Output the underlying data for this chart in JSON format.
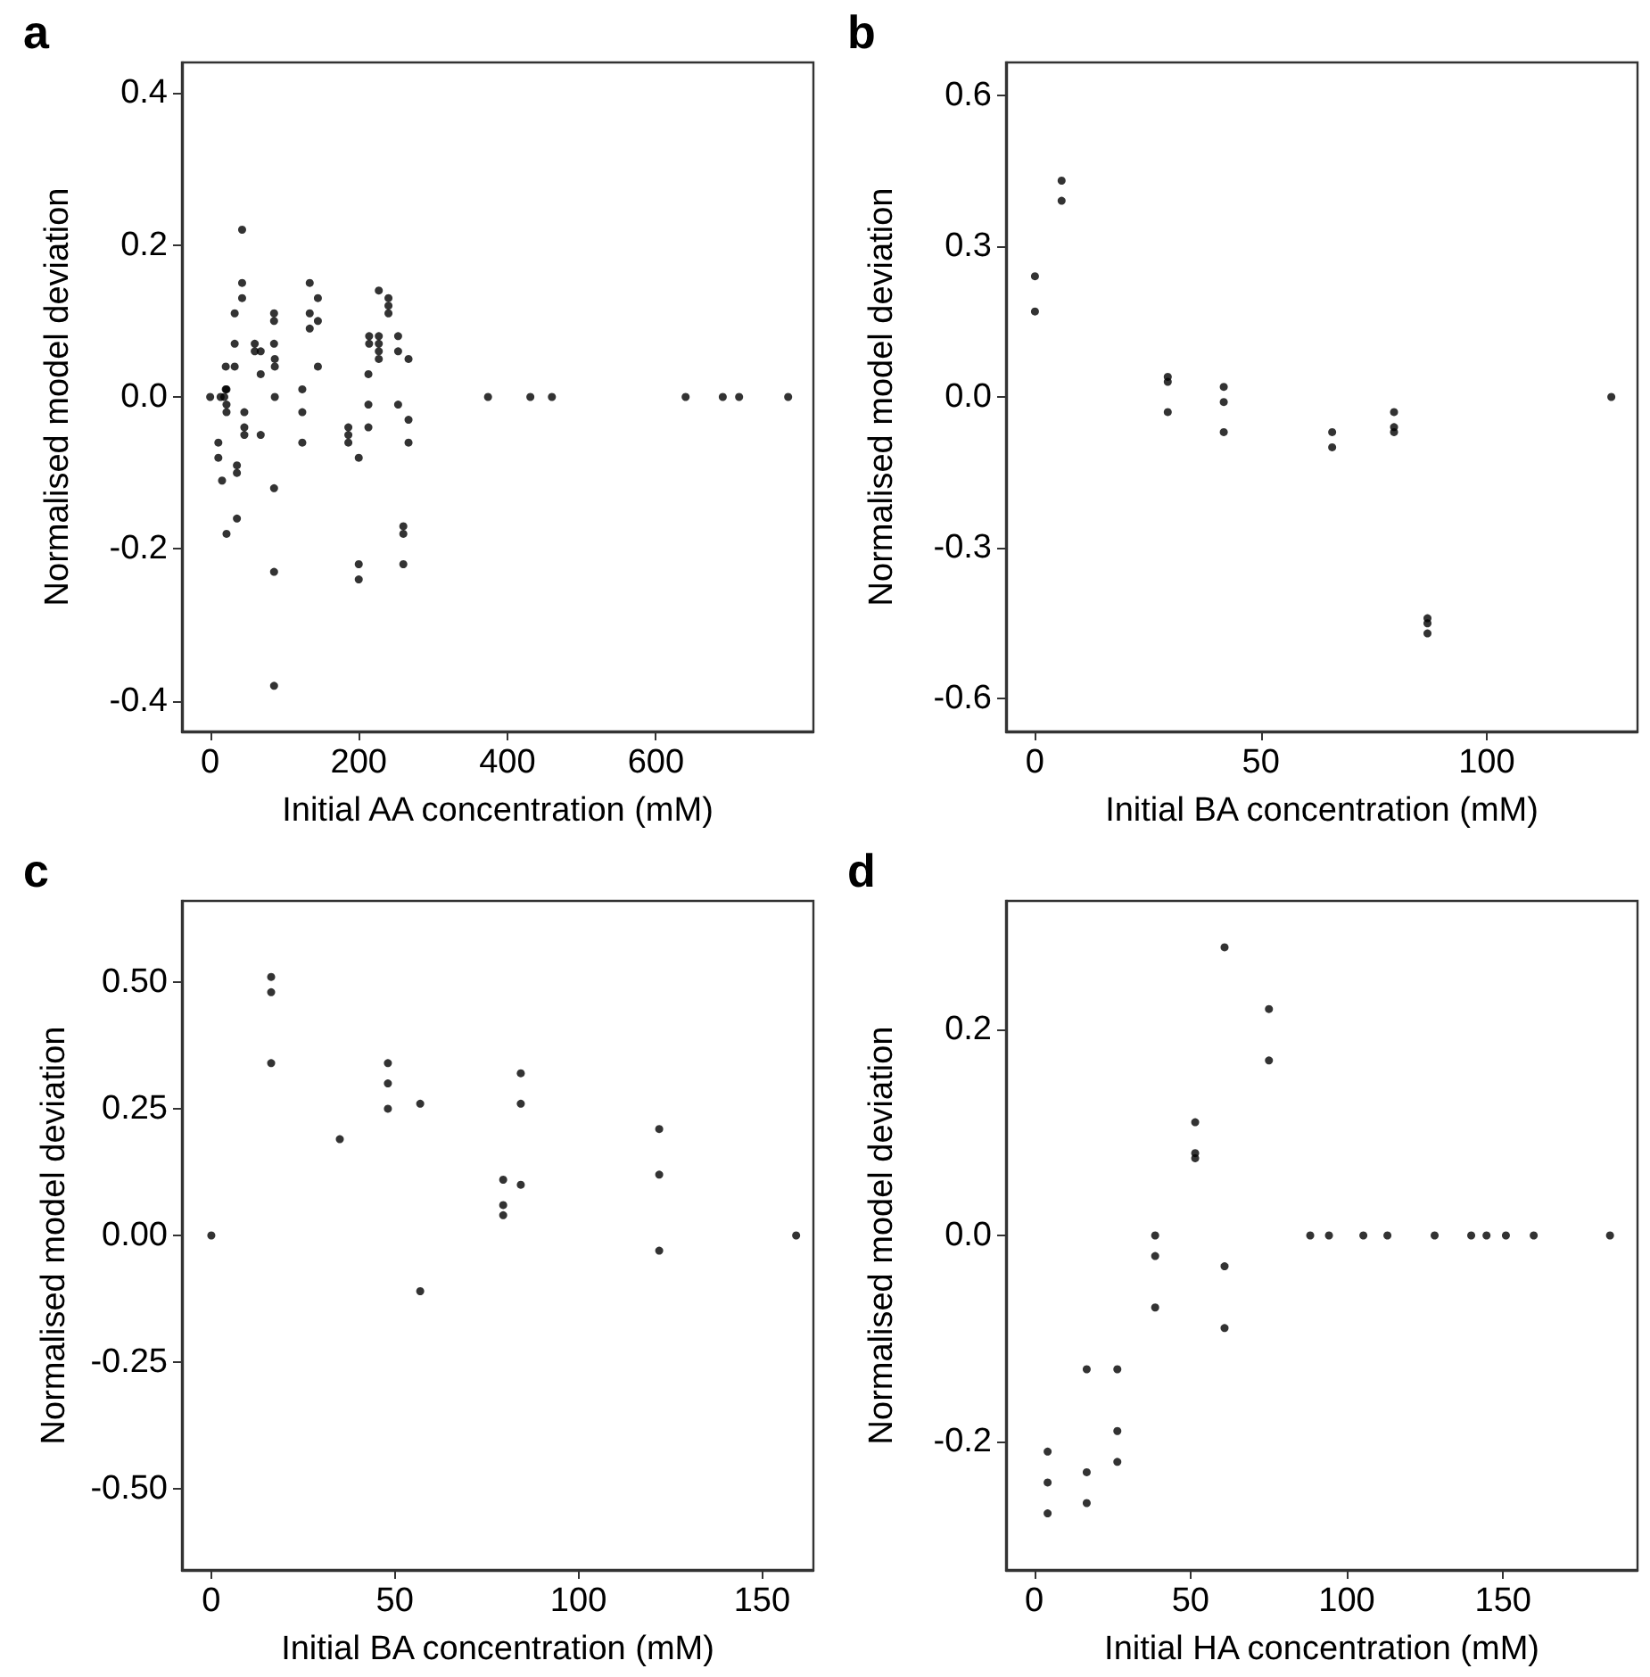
{
  "chart_data": [
    {
      "type": "scatter",
      "title": "a",
      "xlabel": "Initial AA concentration (mM)",
      "ylabel": "Normalised model deviation",
      "marker": "circle",
      "grid": false,
      "xlim": [
        -38,
        812
      ],
      "xticks": [
        0,
        200,
        400,
        600
      ],
      "ylim": [
        -0.44,
        0.44
      ],
      "yticks": [
        -0.4,
        -0.2,
        {
          "value": 0,
          "label": "0.0"
        },
        0.2,
        0.4
      ],
      "series": [
        {
          "color": "#000000",
          "x": [
            0,
            11,
            11,
            16,
            14,
            19,
            21,
            22,
            22,
            22,
            21,
            22,
            33,
            33,
            33,
            36,
            36,
            36,
            43,
            43,
            43,
            46,
            46,
            46,
            60,
            60,
            68,
            68,
            68,
            86,
            86,
            86,
            87,
            87,
            87,
            86,
            86,
            86,
            124,
            124,
            124,
            134,
            134,
            134,
            145,
            145,
            145,
            186,
            186,
            186,
            200,
            200,
            200,
            213,
            213,
            213,
            214,
            214,
            227,
            227,
            227,
            227,
            227,
            240,
            240,
            240,
            253,
            253,
            253,
            260,
            260,
            260,
            267,
            267,
            267,
            374,
            431,
            460,
            640,
            690,
            712,
            778
          ],
          "values": [
            0,
            -0.06,
            -0.08,
            -0.11,
            0,
            0,
            0.01,
            0.01,
            -0.01,
            -0.02,
            0.04,
            -0.18,
            0.07,
            0.04,
            0.11,
            -0.09,
            -0.1,
            -0.16,
            0.22,
            0.15,
            0.13,
            -0.02,
            -0.04,
            -0.05,
            0.07,
            0.06,
            0.06,
            0.03,
            -0.05,
            0.11,
            0.1,
            0.07,
            0.05,
            0.04,
            0,
            -0.12,
            -0.23,
            -0.38,
            0.01,
            -0.02,
            -0.06,
            0.15,
            0.11,
            0.09,
            0.13,
            0.1,
            0.04,
            -0.04,
            -0.05,
            -0.06,
            -0.08,
            -0.22,
            -0.24,
            0.03,
            -0.01,
            -0.04,
            0.08,
            0.07,
            0.14,
            0.08,
            0.07,
            0.06,
            0.05,
            0.13,
            0.12,
            0.11,
            0.08,
            0.06,
            -0.01,
            -0.17,
            -0.18,
            -0.22,
            0.05,
            -0.03,
            -0.06,
            0,
            0,
            0,
            0,
            0,
            0,
            0
          ]
        }
      ]
    },
    {
      "type": "scatter",
      "title": "b",
      "xlabel": "Initial BA concentration (mM)",
      "ylabel": "Normalised model deviation",
      "marker": "circle",
      "grid": false,
      "xlim": [
        -6.4,
        133.4
      ],
      "xticks": [
        0,
        50,
        100
      ],
      "ylim": [
        -0.665,
        0.665
      ],
      "yticks": [
        -0.6,
        -0.3,
        {
          "value": 0,
          "label": "0.0"
        },
        0.3,
        0.6
      ],
      "series": [
        {
          "color": "#000000",
          "x": [
            0,
            0,
            5.9,
            5.9,
            29.4,
            29.4,
            29.4,
            41.8,
            41.8,
            41.8,
            65.8,
            65.8,
            79.5,
            79.5,
            79.5,
            86.9,
            86.9,
            86.9,
            127.6
          ],
          "values": [
            0.24,
            0.17,
            0.43,
            0.39,
            0.04,
            0.03,
            -0.03,
            0.02,
            -0.01,
            -0.07,
            -0.07,
            -0.1,
            -0.03,
            -0.06,
            -0.07,
            -0.44,
            -0.45,
            -0.47,
            0
          ]
        }
      ]
    },
    {
      "type": "scatter",
      "title": "c",
      "xlabel": "Initial BA concentration (mM)",
      "ylabel": "Normalised model deviation",
      "marker": "circle",
      "grid": false,
      "xlim": [
        -8,
        164
      ],
      "xticks": [
        0,
        50,
        100,
        150
      ],
      "ylim": [
        -0.66,
        0.66
      ],
      "yticks": [
        {
          "value": -0.5,
          "label": "-0.50"
        },
        -0.25,
        {
          "value": 0,
          "label": "0.00"
        },
        0.25,
        {
          "value": 0.5,
          "label": "0.50"
        }
      ],
      "series": [
        {
          "color": "#000000",
          "x": [
            0,
            16.3,
            16.3,
            16.3,
            35,
            48.1,
            48.1,
            48.1,
            56.9,
            56.9,
            79.5,
            79.5,
            79.5,
            84.3,
            84.3,
            84.3,
            122,
            122,
            122,
            159.3
          ],
          "values": [
            0,
            0.51,
            0.48,
            0.34,
            0.19,
            0.34,
            0.3,
            0.25,
            0.26,
            -0.11,
            0.11,
            0.06,
            0.04,
            0.32,
            0.26,
            0.1,
            0.21,
            0.12,
            -0.03,
            0
          ]
        }
      ]
    },
    {
      "type": "scatter",
      "title": "d",
      "xlabel": "Initial HA concentration (mM)",
      "ylabel": "Normalised model deviation",
      "marker": "circle",
      "grid": false,
      "xlim": [
        -9,
        193
      ],
      "xticks": [
        0,
        50,
        100,
        150
      ],
      "ylim": [
        -0.325,
        0.325
      ],
      "yticks": [
        -0.2,
        {
          "value": 0,
          "label": "0.0"
        },
        0.2
      ],
      "series": [
        {
          "color": "#000000",
          "x": [
            4.3,
            4.3,
            4.3,
            16.8,
            16.8,
            16.8,
            26.6,
            26.6,
            26.6,
            38.7,
            38.7,
            38.7,
            51.5,
            51.5,
            51.5,
            60.9,
            60.9,
            60.9,
            75.1,
            75.1,
            88.3,
            94.3,
            105.3,
            113,
            128.1,
            139.8,
            144.7,
            150.9,
            159.8,
            184.2
          ],
          "values": [
            -0.21,
            -0.24,
            -0.27,
            -0.13,
            -0.23,
            -0.26,
            -0.13,
            -0.19,
            -0.22,
            0,
            -0.02,
            -0.07,
            0.11,
            0.08,
            0.075,
            0.28,
            -0.03,
            -0.09,
            0.22,
            0.17,
            0,
            0,
            0,
            0,
            0,
            0,
            0,
            0,
            0,
            0
          ]
        }
      ]
    }
  ]
}
